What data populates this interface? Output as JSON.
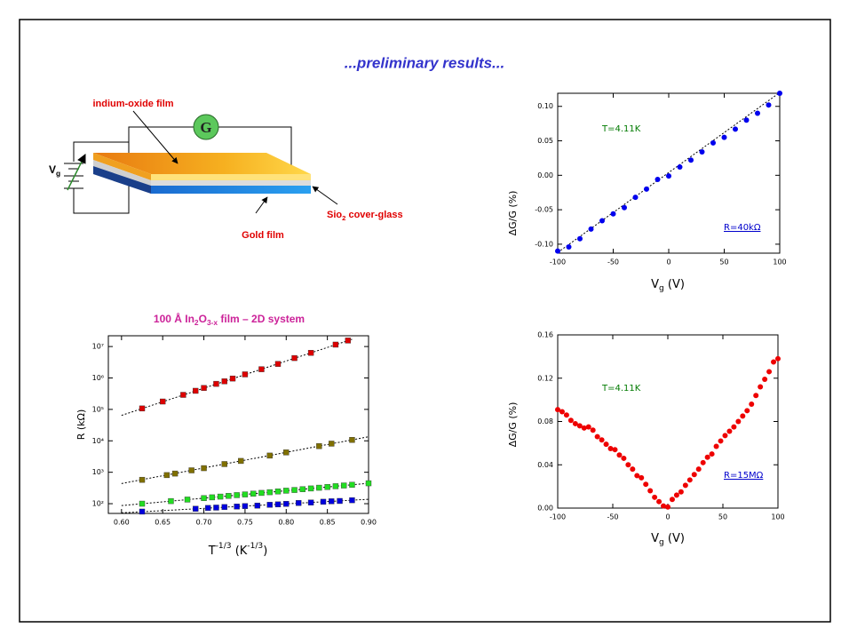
{
  "title": "...preliminary results...",
  "diagram": {
    "film_label": "indium-oxide film",
    "meter": "G",
    "gate_label": [
      "V",
      "g"
    ],
    "glass_label": [
      "Sio",
      "2",
      " cover-glass"
    ],
    "gold_label": "Gold film"
  },
  "chart_data": [
    {
      "type": "scatter",
      "ylabel": [
        "ΔG/G (%)"
      ],
      "xlabel": [
        "V",
        "g",
        " (V)"
      ],
      "xlim": [
        -100,
        100
      ],
      "xticks": [
        -100,
        -50,
        0,
        50,
        100
      ],
      "ylim": [
        -0.113,
        0.119
      ],
      "yticks": [
        {
          "value": 0.1,
          "label": "0.10"
        },
        0.05,
        {
          "value": 0,
          "label": "0.00"
        },
        -0.05,
        {
          "value": -0.1,
          "label": "-0.10"
        }
      ],
      "marker": "circle",
      "series": [
        {
          "color": "#0000ee",
          "x": [
            -100,
            -90,
            -80,
            -70,
            -60,
            -50,
            -40,
            -30,
            -20,
            -10,
            0,
            10,
            20,
            30,
            40,
            50,
            60,
            70,
            80,
            90,
            100
          ],
          "values": [
            -0.11,
            -0.104,
            -0.092,
            -0.078,
            -0.066,
            -0.056,
            -0.047,
            -0.032,
            -0.02,
            -0.006,
            -0.001,
            0.012,
            0.022,
            0.034,
            0.047,
            0.055,
            0.067,
            0.08,
            0.09,
            0.102,
            0.119
          ],
          "fit": {
            "x": [
              -100,
              100
            ],
            "values": [
              -0.112,
              0.12
            ]
          }
        }
      ],
      "annotations": [
        {
          "text": "T=4.11K",
          "color": "#007a00"
        },
        {
          "text": "R=40kΩ",
          "color": "#0000cc"
        }
      ]
    },
    {
      "type": "scatter",
      "ylabel": [
        "ΔG/G (%)"
      ],
      "xlabel": [
        "V",
        "g",
        " (V)"
      ],
      "xlim": [
        -100,
        100
      ],
      "xticks": [
        -100,
        -50,
        0,
        50,
        100
      ],
      "ylim": [
        0,
        0.16
      ],
      "yticks": [
        {
          "value": 0,
          "label": "0.00"
        },
        0.04,
        0.08,
        0.12,
        0.16
      ],
      "marker": "circle",
      "series": [
        {
          "color": "#ee0000",
          "x": [
            -100,
            -96,
            -92,
            -88,
            -84,
            -80,
            -76,
            -72,
            -68,
            -64,
            -60,
            -56,
            -52,
            -48,
            -44,
            -40,
            -36,
            -32,
            -28,
            -24,
            -20,
            -16,
            -12,
            -8,
            -4,
            0,
            4,
            8,
            12,
            16,
            20,
            24,
            28,
            32,
            36,
            40,
            44,
            48,
            52,
            56,
            60,
            64,
            68,
            72,
            76,
            80,
            84,
            88,
            92,
            96,
            100
          ],
          "values": [
            0.091,
            0.089,
            0.086,
            0.081,
            0.078,
            0.076,
            0.074,
            0.075,
            0.072,
            0.066,
            0.063,
            0.059,
            0.055,
            0.054,
            0.049,
            0.046,
            0.04,
            0.036,
            0.03,
            0.028,
            0.022,
            0.016,
            0.01,
            0.006,
            0.002,
            0.001,
            0.008,
            0.012,
            0.015,
            0.021,
            0.026,
            0.031,
            0.036,
            0.042,
            0.047,
            0.05,
            0.057,
            0.062,
            0.067,
            0.071,
            0.075,
            0.08,
            0.085,
            0.09,
            0.096,
            0.104,
            0.112,
            0.119,
            0.126,
            0.135,
            0.138
          ]
        }
      ],
      "annotations": [
        {
          "text": "T=4.11K",
          "color": "#007a00"
        },
        {
          "text": "R=15MΩ",
          "color": "#0000cc"
        }
      ]
    },
    {
      "type": "scatter",
      "title": [
        "100 Å In",
        "2",
        "O",
        "3-x",
        " film – 2D system"
      ],
      "ylabel": [
        "R (kΩ)"
      ],
      "xlabel": [
        "T",
        "-1/3",
        " (K",
        "-1/3",
        ")"
      ],
      "xlim": [
        0.584,
        0.9
      ],
      "xticks": [
        {
          "value": 0.6,
          "label": "0.60"
        },
        0.65,
        {
          "value": 0.7,
          "label": "0.70"
        },
        0.75,
        {
          "value": 0.8,
          "label": "0.80"
        },
        0.85,
        {
          "value": 0.9,
          "label": "0.90"
        }
      ],
      "log_y": true,
      "ylim": [
        49,
        22000000
      ],
      "yticks": [
        {
          "value": 100,
          "label": "10²"
        },
        {
          "value": 1000,
          "label": "10³"
        },
        {
          "value": 10000,
          "label": "10⁴"
        },
        {
          "value": 100000,
          "label": "10⁵"
        },
        {
          "value": 1000000,
          "label": "10⁶"
        },
        {
          "value": 10000000,
          "label": "10⁷"
        }
      ],
      "marker": "square",
      "series": [
        {
          "color": "#dd0000",
          "x": [
            0.625,
            0.65,
            0.675,
            0.69,
            0.7,
            0.715,
            0.725,
            0.735,
            0.75,
            0.77,
            0.79,
            0.81,
            0.83,
            0.86,
            0.875
          ],
          "values": [
            107000,
            178000,
            290000,
            390000,
            480000,
            650000,
            780000,
            960000,
            1300000,
            1900000,
            2800000,
            4300000,
            6300000,
            11500000,
            15500000
          ],
          "fit": {
            "x": [
              0.6,
              0.88
            ],
            "values": [
              64600,
              17000000
            ]
          }
        },
        {
          "color": "#807000",
          "x": [
            0.625,
            0.655,
            0.665,
            0.685,
            0.7,
            0.725,
            0.745,
            0.78,
            0.8,
            0.84,
            0.855,
            0.88
          ],
          "values": [
            575,
            810,
            910,
            1150,
            1350,
            1820,
            2290,
            3390,
            4270,
            6760,
            8130,
            10700
          ],
          "fit": {
            "x": [
              0.6,
              0.9
            ],
            "values": [
              437,
              13500
            ]
          }
        },
        {
          "color": "#22dd22",
          "x": [
            0.625,
            0.66,
            0.68,
            0.7,
            0.71,
            0.72,
            0.73,
            0.74,
            0.75,
            0.76,
            0.77,
            0.78,
            0.79,
            0.8,
            0.81,
            0.82,
            0.83,
            0.84,
            0.85,
            0.86,
            0.87,
            0.88,
            0.9
          ],
          "values": [
            100,
            121,
            135,
            150,
            159,
            168,
            177,
            187,
            197,
            208,
            220,
            232,
            245,
            259,
            273,
            289,
            305,
            322,
            340,
            359,
            379,
            400,
            446
          ],
          "fit": {
            "x": [
              0.6,
              0.9
            ],
            "values": [
              87,
              446
            ]
          }
        },
        {
          "color": "#0000dd",
          "x": [
            0.625,
            0.69,
            0.705,
            0.715,
            0.725,
            0.74,
            0.75,
            0.765,
            0.78,
            0.79,
            0.8,
            0.815,
            0.83,
            0.845,
            0.855,
            0.865,
            0.88
          ],
          "values": [
            56,
            69,
            73,
            75,
            78,
            81,
            84,
            87,
            92,
            95,
            99,
            105,
            109,
            115,
            119,
            122,
            129
          ],
          "fit": {
            "x": [
              0.6,
              0.9
            ],
            "values": [
              51,
              138
            ]
          }
        }
      ]
    }
  ]
}
